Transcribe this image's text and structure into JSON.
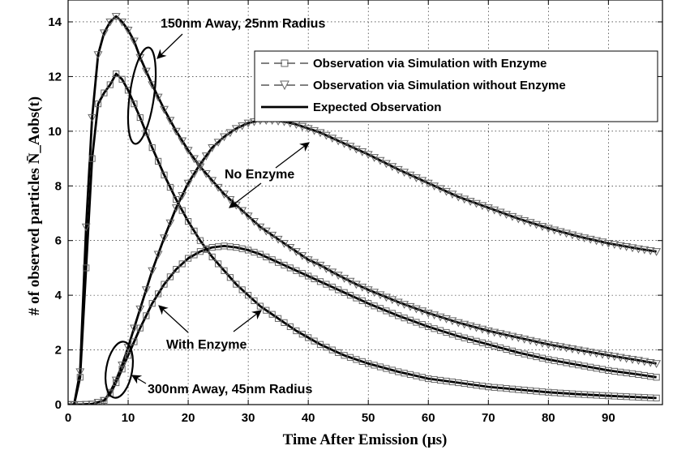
{
  "chart_data": {
    "type": "line",
    "xlabel": "Time After Emission (μs)",
    "ylabel": "# of observed particles N̄_Aobs(t)",
    "xlim": [
      0,
      99
    ],
    "ylim": [
      0,
      14.8
    ],
    "xticks": [
      0,
      10,
      20,
      30,
      40,
      50,
      60,
      70,
      80,
      90
    ],
    "yticks": [
      0,
      2,
      4,
      6,
      8,
      10,
      12,
      14
    ],
    "grid": true,
    "legend_position": "top-right",
    "legend": [
      {
        "label": "Observation via Simulation with Enzyme",
        "marker": "square",
        "style": "dashed"
      },
      {
        "label": "Observation via Simulation without Enzyme",
        "marker": "triangle-down",
        "style": "dashed"
      },
      {
        "label": "Expected Observation",
        "marker": "none",
        "style": "solid"
      }
    ],
    "annotations": [
      {
        "text": "150nm Away, 25nm Radius",
        "target": [
          9,
          13.4
        ]
      },
      {
        "text": "No Enzyme",
        "target": [
          29,
          7.5
        ]
      },
      {
        "text": "With Enzyme",
        "target": [
          17,
          4.0
        ]
      },
      {
        "text": "300nm Away, 45nm Radius",
        "target": [
          9,
          1.0
        ]
      }
    ],
    "series": [
      {
        "name": "Expected Observation",
        "group": "150nm Away, 25nm Radius",
        "variant": "With Enzyme",
        "x": [
          0,
          1,
          2,
          3,
          4,
          5,
          6,
          7,
          8,
          9,
          10,
          11,
          12,
          14,
          16,
          18,
          20,
          22,
          24,
          26,
          28,
          30,
          32,
          34,
          36,
          38,
          40,
          42,
          44,
          46,
          48,
          50,
          55,
          60,
          65,
          70,
          75,
          80,
          85,
          90,
          95,
          98
        ],
        "y": [
          0,
          0,
          1.0,
          5.0,
          9.0,
          11.0,
          11.4,
          11.7,
          12.1,
          11.9,
          11.5,
          11.0,
          10.5,
          9.4,
          8.4,
          7.5,
          6.7,
          6.0,
          5.4,
          4.9,
          4.4,
          4.0,
          3.6,
          3.3,
          3.0,
          2.7,
          2.45,
          2.2,
          2.0,
          1.8,
          1.65,
          1.5,
          1.2,
          0.95,
          0.8,
          0.65,
          0.55,
          0.45,
          0.38,
          0.32,
          0.27,
          0.24
        ]
      },
      {
        "name": "Expected Observation",
        "group": "150nm Away, 25nm Radius",
        "variant": "No Enzyme",
        "x": [
          0,
          1,
          2,
          3,
          4,
          5,
          6,
          7,
          8,
          9,
          10,
          11,
          12,
          14,
          16,
          18,
          20,
          22,
          24,
          26,
          28,
          30,
          32,
          34,
          36,
          38,
          40,
          42,
          44,
          46,
          48,
          50,
          55,
          60,
          65,
          70,
          75,
          80,
          85,
          90,
          95,
          98
        ],
        "y": [
          0,
          0,
          1.2,
          6.5,
          10.5,
          12.8,
          13.6,
          14.0,
          14.2,
          14.0,
          13.7,
          13.3,
          12.7,
          11.7,
          10.8,
          10.0,
          9.3,
          8.7,
          8.2,
          7.7,
          7.3,
          6.9,
          6.5,
          6.2,
          5.9,
          5.6,
          5.3,
          5.1,
          4.85,
          4.62,
          4.4,
          4.2,
          3.75,
          3.35,
          3.0,
          2.7,
          2.45,
          2.2,
          2.0,
          1.8,
          1.62,
          1.5
        ]
      },
      {
        "name": "Expected Observation",
        "group": "300nm Away, 45nm Radius",
        "variant": "With Enzyme",
        "x": [
          0,
          2,
          4,
          6,
          7,
          8,
          9,
          10,
          11,
          12,
          14,
          16,
          18,
          20,
          22,
          24,
          26,
          28,
          30,
          32,
          34,
          36,
          38,
          40,
          42,
          44,
          46,
          48,
          50,
          55,
          60,
          65,
          70,
          75,
          80,
          85,
          90,
          95,
          98
        ],
        "y": [
          0,
          0,
          0.02,
          0.15,
          0.4,
          0.8,
          1.3,
          1.8,
          2.3,
          2.8,
          3.7,
          4.4,
          4.95,
          5.35,
          5.6,
          5.75,
          5.8,
          5.75,
          5.65,
          5.5,
          5.3,
          5.1,
          4.9,
          4.7,
          4.5,
          4.3,
          4.1,
          3.9,
          3.7,
          3.25,
          2.85,
          2.5,
          2.2,
          1.9,
          1.65,
          1.45,
          1.25,
          1.1,
          1.0
        ]
      },
      {
        "name": "Expected Observation",
        "group": "300nm Away, 45nm Radius",
        "variant": "No Enzyme",
        "x": [
          0,
          2,
          4,
          6,
          7,
          8,
          9,
          10,
          11,
          12,
          14,
          16,
          18,
          20,
          22,
          24,
          26,
          28,
          30,
          32,
          34,
          36,
          38,
          40,
          42,
          44,
          46,
          48,
          50,
          55,
          60,
          65,
          70,
          75,
          80,
          85,
          90,
          95,
          98
        ],
        "y": [
          0,
          0,
          0.02,
          0.15,
          0.45,
          0.9,
          1.45,
          2.1,
          2.8,
          3.5,
          4.9,
          6.1,
          7.2,
          8.1,
          8.8,
          9.4,
          9.8,
          10.1,
          10.3,
          10.4,
          10.4,
          10.35,
          10.25,
          10.1,
          9.95,
          9.75,
          9.55,
          9.35,
          9.15,
          8.6,
          8.1,
          7.6,
          7.2,
          6.8,
          6.45,
          6.15,
          5.9,
          5.7,
          5.6
        ]
      }
    ]
  }
}
